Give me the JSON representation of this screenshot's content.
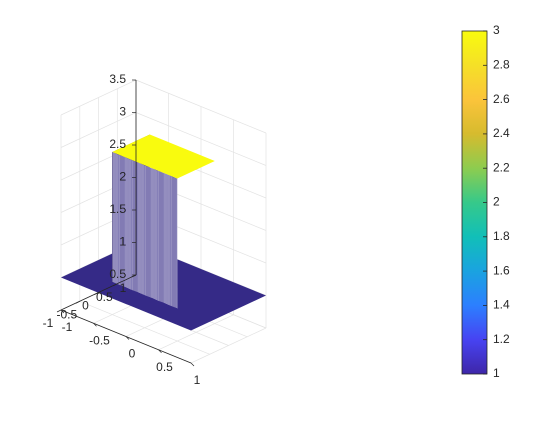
{
  "chart_data": {
    "type": "surface",
    "title": "",
    "xlabel": "",
    "ylabel": "",
    "zlabel": "",
    "x_range": [
      -1,
      1
    ],
    "y_range": [
      -1,
      1
    ],
    "zlim": [
      0.5,
      3.5
    ],
    "x_ticks": [
      "-1",
      "-0.5",
      "0",
      "0.5",
      "1"
    ],
    "y_ticks": [
      "-1",
      "-0.5",
      "0",
      "0.5",
      "1"
    ],
    "z_ticks": [
      "0.5",
      "1",
      "1.5",
      "2",
      "2.5",
      "3",
      "3.5"
    ],
    "surface": {
      "base_value": 1,
      "plateau_value": 3,
      "plateau_x": [
        -0.5,
        0.5
      ],
      "plateau_y": [
        -0.5,
        0.5
      ]
    },
    "colorbar": {
      "min": 1,
      "max": 3,
      "ticks": [
        "1",
        "1.2",
        "1.4",
        "1.6",
        "1.8",
        "2",
        "2.2",
        "2.4",
        "2.6",
        "2.8",
        "3"
      ],
      "colormap": "parula",
      "colors": [
        "#3e26a8",
        "#4743f2",
        "#2c7fff",
        "#1aa3e0",
        "#11bfb8",
        "#36c98a",
        "#8dcc4f",
        "#d6bb2e",
        "#fbc43b",
        "#f5e027",
        "#f9fb0e"
      ]
    },
    "grid": true,
    "view": "3d-default",
    "colors": {
      "low": "#352a87",
      "high": "#f9fb0e",
      "edge": "#ffffff"
    }
  }
}
